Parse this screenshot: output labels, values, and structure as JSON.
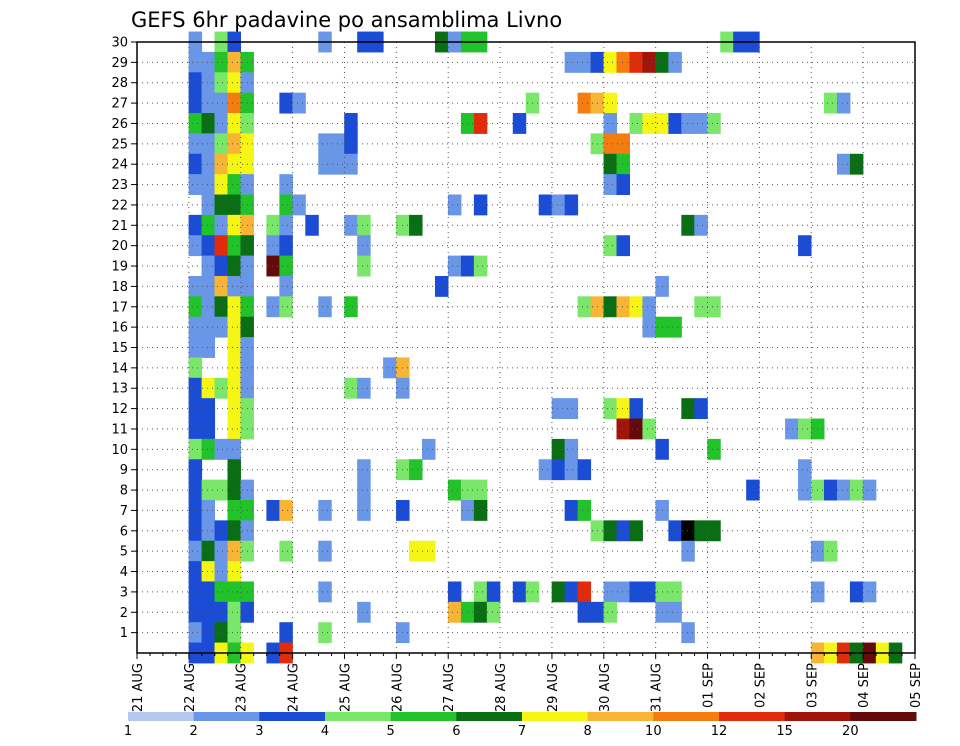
{
  "chart_data": {
    "type": "heatmap",
    "title": "GEFS 6hr padavine po ansamblima Livno",
    "x_labels": [
      "21 AUG",
      "22 AUG",
      "23 AUG",
      "24 AUG",
      "25 AUG",
      "26 AUG",
      "27 AUG",
      "28 AUG",
      "29 AUG",
      "30 AUG",
      "31 AUG",
      "01 SEP",
      "02 SEP",
      "03 SEP",
      "04 SEP",
      "05 SEP"
    ],
    "x_range": [
      0,
      60
    ],
    "y_range": [
      0,
      30
    ],
    "y_ticks": [
      1,
      2,
      3,
      4,
      5,
      6,
      7,
      8,
      9,
      10,
      11,
      12,
      13,
      14,
      15,
      16,
      17,
      18,
      19,
      20,
      21,
      22,
      23,
      24,
      25,
      26,
      27,
      28,
      29,
      30
    ],
    "grid": true,
    "legend_position": "bottom",
    "colorbar": {
      "labels": [
        "1",
        "2",
        "3",
        "4",
        "5",
        "6",
        "7",
        "8",
        "10",
        "12",
        "15",
        "20"
      ],
      "colors": [
        "#b4c8f0",
        "#6a96e8",
        "#1a4cd6",
        "#7ae66a",
        "#22c22a",
        "#0a6e14",
        "#f6f614",
        "#f8b434",
        "#f47c10",
        "#e02c0a",
        "#a0140a",
        "#640a0a"
      ]
    },
    "cells": [
      [
        4,
        30,
        1
      ],
      [
        6,
        30,
        3
      ],
      [
        7,
        30,
        2
      ],
      [
        14,
        30,
        1
      ],
      [
        17,
        30,
        2
      ],
      [
        18,
        30,
        2
      ],
      [
        23,
        30,
        5
      ],
      [
        24,
        30,
        1
      ],
      [
        25,
        30,
        4
      ],
      [
        26,
        30,
        4
      ],
      [
        45,
        30,
        3
      ],
      [
        46,
        30,
        2
      ],
      [
        47,
        30,
        2
      ],
      [
        4,
        29,
        1
      ],
      [
        5,
        29,
        1
      ],
      [
        6,
        29,
        4
      ],
      [
        7,
        29,
        7
      ],
      [
        8,
        29,
        4
      ],
      [
        33,
        29,
        1
      ],
      [
        34,
        29,
        1
      ],
      [
        35,
        29,
        2
      ],
      [
        36,
        29,
        6
      ],
      [
        37,
        29,
        8
      ],
      [
        38,
        29,
        9
      ],
      [
        39,
        29,
        10
      ],
      [
        40,
        29,
        5
      ],
      [
        41,
        29,
        1
      ],
      [
        4,
        28,
        2
      ],
      [
        5,
        28,
        1
      ],
      [
        6,
        28,
        3
      ],
      [
        7,
        28,
        6
      ],
      [
        8,
        28,
        1
      ],
      [
        4,
        27,
        2
      ],
      [
        5,
        27,
        1
      ],
      [
        6,
        27,
        1
      ],
      [
        7,
        27,
        8
      ],
      [
        8,
        27,
        4
      ],
      [
        11,
        27,
        2
      ],
      [
        12,
        27,
        1
      ],
      [
        30,
        27,
        3
      ],
      [
        34,
        27,
        8
      ],
      [
        35,
        27,
        7
      ],
      [
        36,
        27,
        6
      ],
      [
        53,
        27,
        3
      ],
      [
        54,
        27,
        1
      ],
      [
        4,
        26,
        4
      ],
      [
        5,
        26,
        5
      ],
      [
        6,
        26,
        1
      ],
      [
        7,
        26,
        6
      ],
      [
        8,
        26,
        3
      ],
      [
        16,
        26,
        2
      ],
      [
        25,
        26,
        4
      ],
      [
        26,
        26,
        9
      ],
      [
        29,
        26,
        2
      ],
      [
        36,
        26,
        1
      ],
      [
        38,
        26,
        3
      ],
      [
        39,
        26,
        6
      ],
      [
        40,
        26,
        6
      ],
      [
        41,
        26,
        2
      ],
      [
        42,
        26,
        1
      ],
      [
        43,
        26,
        1
      ],
      [
        44,
        26,
        3
      ],
      [
        4,
        25,
        1
      ],
      [
        5,
        25,
        1
      ],
      [
        6,
        25,
        3
      ],
      [
        7,
        25,
        7
      ],
      [
        8,
        25,
        6
      ],
      [
        14,
        25,
        1
      ],
      [
        15,
        25,
        1
      ],
      [
        16,
        25,
        2
      ],
      [
        35,
        25,
        3
      ],
      [
        36,
        25,
        8
      ],
      [
        37,
        25,
        8
      ],
      [
        4,
        24,
        2
      ],
      [
        5,
        24,
        1
      ],
      [
        6,
        24,
        7
      ],
      [
        7,
        24,
        6
      ],
      [
        8,
        24,
        6
      ],
      [
        14,
        24,
        1
      ],
      [
        15,
        24,
        1
      ],
      [
        16,
        24,
        1
      ],
      [
        36,
        24,
        5
      ],
      [
        37,
        24,
        4
      ],
      [
        54,
        24,
        1
      ],
      [
        55,
        24,
        5
      ],
      [
        4,
        23,
        1
      ],
      [
        5,
        23,
        1
      ],
      [
        6,
        23,
        6
      ],
      [
        7,
        23,
        4
      ],
      [
        8,
        23,
        1
      ],
      [
        11,
        23,
        1
      ],
      [
        36,
        23,
        1
      ],
      [
        37,
        23,
        2
      ],
      [
        5,
        22,
        1
      ],
      [
        6,
        22,
        5
      ],
      [
        7,
        22,
        5
      ],
      [
        8,
        22,
        4
      ],
      [
        11,
        22,
        4
      ],
      [
        12,
        22,
        1
      ],
      [
        24,
        22,
        1
      ],
      [
        26,
        22,
        2
      ],
      [
        31,
        22,
        2
      ],
      [
        32,
        22,
        1
      ],
      [
        33,
        22,
        2
      ],
      [
        4,
        21,
        2
      ],
      [
        5,
        21,
        4
      ],
      [
        6,
        21,
        1
      ],
      [
        7,
        21,
        6
      ],
      [
        8,
        21,
        7
      ],
      [
        10,
        21,
        3
      ],
      [
        11,
        21,
        1
      ],
      [
        13,
        21,
        2
      ],
      [
        16,
        21,
        1
      ],
      [
        17,
        21,
        3
      ],
      [
        20,
        21,
        3
      ],
      [
        21,
        21,
        5
      ],
      [
        42,
        21,
        5
      ],
      [
        43,
        21,
        1
      ],
      [
        4,
        20,
        1
      ],
      [
        5,
        20,
        2
      ],
      [
        6,
        20,
        9
      ],
      [
        7,
        20,
        4
      ],
      [
        8,
        20,
        5
      ],
      [
        10,
        20,
        1
      ],
      [
        11,
        20,
        2
      ],
      [
        17,
        20,
        1
      ],
      [
        36,
        20,
        3
      ],
      [
        37,
        20,
        2
      ],
      [
        51,
        20,
        2
      ],
      [
        5,
        19,
        1
      ],
      [
        6,
        19,
        2
      ],
      [
        7,
        19,
        5
      ],
      [
        8,
        19,
        1
      ],
      [
        10,
        19,
        11
      ],
      [
        11,
        19,
        4
      ],
      [
        17,
        19,
        3
      ],
      [
        24,
        19,
        1
      ],
      [
        25,
        19,
        2
      ],
      [
        26,
        19,
        3
      ],
      [
        4,
        18,
        1
      ],
      [
        5,
        18,
        1
      ],
      [
        6,
        18,
        7
      ],
      [
        7,
        18,
        1
      ],
      [
        8,
        18,
        1
      ],
      [
        11,
        18,
        1
      ],
      [
        23,
        18,
        2
      ],
      [
        40,
        18,
        1
      ],
      [
        4,
        17,
        4
      ],
      [
        5,
        17,
        1
      ],
      [
        6,
        17,
        5
      ],
      [
        7,
        17,
        6
      ],
      [
        8,
        17,
        4
      ],
      [
        10,
        17,
        1
      ],
      [
        11,
        17,
        3
      ],
      [
        14,
        17,
        1
      ],
      [
        16,
        17,
        4
      ],
      [
        34,
        17,
        3
      ],
      [
        35,
        17,
        7
      ],
      [
        36,
        17,
        5
      ],
      [
        37,
        17,
        7
      ],
      [
        38,
        17,
        6
      ],
      [
        39,
        17,
        1
      ],
      [
        43,
        17,
        3
      ],
      [
        44,
        17,
        3
      ],
      [
        4,
        16,
        1
      ],
      [
        5,
        16,
        1
      ],
      [
        6,
        16,
        1
      ],
      [
        7,
        16,
        6
      ],
      [
        8,
        16,
        5
      ],
      [
        39,
        16,
        1
      ],
      [
        40,
        16,
        4
      ],
      [
        41,
        16,
        4
      ],
      [
        4,
        15,
        1
      ],
      [
        5,
        15,
        1
      ],
      [
        7,
        15,
        6
      ],
      [
        8,
        15,
        1
      ],
      [
        4,
        14,
        3
      ],
      [
        7,
        14,
        6
      ],
      [
        8,
        14,
        1
      ],
      [
        19,
        14,
        1
      ],
      [
        20,
        14,
        7
      ],
      [
        4,
        13,
        2
      ],
      [
        5,
        13,
        6
      ],
      [
        6,
        13,
        3
      ],
      [
        7,
        13,
        6
      ],
      [
        8,
        13,
        1
      ],
      [
        16,
        13,
        3
      ],
      [
        17,
        13,
        1
      ],
      [
        20,
        13,
        1
      ],
      [
        4,
        12,
        2
      ],
      [
        5,
        12,
        2
      ],
      [
        7,
        12,
        6
      ],
      [
        8,
        12,
        3
      ],
      [
        32,
        12,
        1
      ],
      [
        33,
        12,
        1
      ],
      [
        36,
        12,
        3
      ],
      [
        37,
        12,
        6
      ],
      [
        38,
        12,
        2
      ],
      [
        42,
        12,
        5
      ],
      [
        43,
        12,
        2
      ],
      [
        4,
        11,
        2
      ],
      [
        5,
        11,
        2
      ],
      [
        7,
        11,
        6
      ],
      [
        8,
        11,
        3
      ],
      [
        37,
        11,
        10
      ],
      [
        38,
        11,
        11
      ],
      [
        39,
        11,
        3
      ],
      [
        50,
        11,
        1
      ],
      [
        51,
        11,
        3
      ],
      [
        52,
        11,
        4
      ],
      [
        4,
        10,
        3
      ],
      [
        5,
        10,
        4
      ],
      [
        6,
        10,
        1
      ],
      [
        7,
        10,
        1
      ],
      [
        22,
        10,
        1
      ],
      [
        32,
        10,
        5
      ],
      [
        33,
        10,
        1
      ],
      [
        40,
        10,
        2
      ],
      [
        44,
        10,
        4
      ],
      [
        4,
        9,
        2
      ],
      [
        7,
        9,
        5
      ],
      [
        17,
        9,
        1
      ],
      [
        20,
        9,
        3
      ],
      [
        21,
        9,
        4
      ],
      [
        31,
        9,
        1
      ],
      [
        32,
        9,
        2
      ],
      [
        33,
        9,
        1
      ],
      [
        34,
        9,
        2
      ],
      [
        51,
        9,
        1
      ],
      [
        4,
        8,
        2
      ],
      [
        5,
        8,
        3
      ],
      [
        6,
        8,
        3
      ],
      [
        7,
        8,
        5
      ],
      [
        8,
        8,
        1
      ],
      [
        17,
        8,
        1
      ],
      [
        24,
        8,
        4
      ],
      [
        25,
        8,
        3
      ],
      [
        26,
        8,
        3
      ],
      [
        47,
        8,
        2
      ],
      [
        51,
        8,
        1
      ],
      [
        52,
        8,
        3
      ],
      [
        53,
        8,
        2
      ],
      [
        54,
        8,
        1
      ],
      [
        55,
        8,
        3
      ],
      [
        56,
        8,
        1
      ],
      [
        4,
        7,
        2
      ],
      [
        5,
        7,
        1
      ],
      [
        7,
        7,
        4
      ],
      [
        8,
        7,
        4
      ],
      [
        10,
        7,
        2
      ],
      [
        11,
        7,
        7
      ],
      [
        14,
        7,
        1
      ],
      [
        17,
        7,
        1
      ],
      [
        20,
        7,
        2
      ],
      [
        25,
        7,
        1
      ],
      [
        26,
        7,
        5
      ],
      [
        33,
        7,
        2
      ],
      [
        34,
        7,
        4
      ],
      [
        40,
        7,
        1
      ],
      [
        4,
        6,
        2
      ],
      [
        5,
        6,
        1
      ],
      [
        6,
        6,
        2
      ],
      [
        7,
        6,
        5
      ],
      [
        8,
        6,
        1
      ],
      [
        35,
        6,
        3
      ],
      [
        36,
        6,
        5
      ],
      [
        37,
        6,
        2
      ],
      [
        38,
        6,
        5
      ],
      [
        41,
        6,
        2
      ],
      [
        42,
        6,
        12
      ],
      [
        43,
        6,
        5
      ],
      [
        44,
        6,
        5
      ],
      [
        4,
        5,
        1
      ],
      [
        5,
        5,
        5
      ],
      [
        6,
        5,
        1
      ],
      [
        7,
        5,
        7
      ],
      [
        8,
        5,
        3
      ],
      [
        11,
        5,
        3
      ],
      [
        14,
        5,
        1
      ],
      [
        21,
        5,
        6
      ],
      [
        22,
        5,
        6
      ],
      [
        42,
        5,
        1
      ],
      [
        52,
        5,
        1
      ],
      [
        53,
        5,
        3
      ],
      [
        4,
        4,
        2
      ],
      [
        5,
        4,
        6
      ],
      [
        6,
        4,
        1
      ],
      [
        7,
        4,
        6
      ],
      [
        4,
        3,
        2
      ],
      [
        5,
        3,
        2
      ],
      [
        6,
        3,
        4
      ],
      [
        7,
        3,
        4
      ],
      [
        8,
        3,
        4
      ],
      [
        14,
        3,
        1
      ],
      [
        24,
        3,
        2
      ],
      [
        26,
        3,
        3
      ],
      [
        27,
        3,
        2
      ],
      [
        29,
        3,
        2
      ],
      [
        30,
        3,
        3
      ],
      [
        32,
        3,
        5
      ],
      [
        33,
        3,
        2
      ],
      [
        34,
        3,
        9
      ],
      [
        36,
        3,
        1
      ],
      [
        37,
        3,
        1
      ],
      [
        38,
        3,
        2
      ],
      [
        39,
        3,
        2
      ],
      [
        40,
        3,
        3
      ],
      [
        41,
        3,
        3
      ],
      [
        52,
        3,
        1
      ],
      [
        55,
        3,
        2
      ],
      [
        56,
        3,
        1
      ],
      [
        4,
        2,
        2
      ],
      [
        5,
        2,
        2
      ],
      [
        6,
        2,
        2
      ],
      [
        7,
        2,
        3
      ],
      [
        8,
        2,
        2
      ],
      [
        17,
        2,
        1
      ],
      [
        24,
        2,
        7
      ],
      [
        25,
        2,
        4
      ],
      [
        26,
        2,
        5
      ],
      [
        27,
        2,
        3
      ],
      [
        34,
        2,
        2
      ],
      [
        35,
        2,
        2
      ],
      [
        36,
        2,
        3
      ],
      [
        40,
        2,
        1
      ],
      [
        41,
        2,
        1
      ],
      [
        4,
        1,
        1
      ],
      [
        5,
        1,
        2
      ],
      [
        6,
        1,
        5
      ],
      [
        7,
        1,
        3
      ],
      [
        11,
        1,
        2
      ],
      [
        14,
        1,
        3
      ],
      [
        20,
        1,
        1
      ],
      [
        42,
        1,
        1
      ],
      [
        4,
        0,
        2
      ],
      [
        5,
        0,
        2
      ],
      [
        6,
        0,
        6
      ],
      [
        7,
        0,
        4
      ],
      [
        8,
        0,
        6
      ],
      [
        10,
        0,
        2
      ],
      [
        11,
        0,
        9
      ],
      [
        52,
        0,
        7
      ],
      [
        53,
        0,
        6
      ],
      [
        54,
        0,
        9
      ],
      [
        55,
        0,
        5
      ],
      [
        56,
        0,
        11
      ],
      [
        57,
        0,
        6
      ],
      [
        58,
        0,
        5
      ]
    ]
  }
}
